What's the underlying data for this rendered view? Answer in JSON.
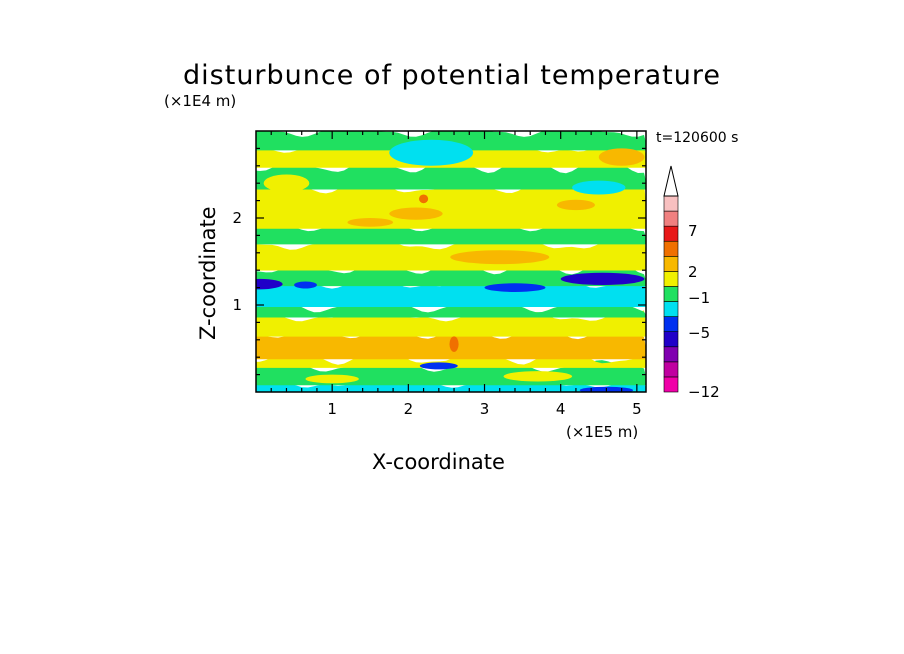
{
  "title": "disturbunce of potential temperature",
  "time_label": "t=120600 s",
  "chart_data": {
    "type": "heatmap",
    "title": "disturbunce of potential temperature",
    "xlabel": "X-coordinate",
    "ylabel": "Z-coordinate",
    "x_unit": "(×1E5 m)",
    "y_unit": "(×1E4 m)",
    "xlim": [
      0,
      5.12
    ],
    "ylim": [
      0,
      3.0
    ],
    "x_ticks": [
      1,
      2,
      3,
      4,
      5
    ],
    "y_ticks": [
      1,
      2
    ],
    "colorbar": {
      "ticks": [
        "7",
        "2",
        "−1",
        "−5",
        "−12"
      ],
      "extend": "max",
      "colors": [
        "#f000a8",
        "#c000a0",
        "#8000b0",
        "#2000c8",
        "#0030f0",
        "#00e0f0",
        "#20e060",
        "#f0f000",
        "#f8b800",
        "#f07000",
        "#e81818",
        "#f08080",
        "#f8c0c0"
      ]
    },
    "bands": [
      {
        "z0": 0.0,
        "z1": 0.1,
        "color": "#00e0f0"
      },
      {
        "z0": 0.1,
        "z1": 0.3,
        "color": "#20e060"
      },
      {
        "z0": 0.3,
        "z1": 0.4,
        "color": "#f0f000"
      },
      {
        "z0": 0.4,
        "z1": 0.66,
        "color": "#f8b800"
      },
      {
        "z0": 0.66,
        "z1": 0.88,
        "color": "#f0f000"
      },
      {
        "z0": 0.88,
        "z1": 1.0,
        "color": "#20e060"
      },
      {
        "z0": 1.0,
        "z1": 1.24,
        "color": "#00e0f0"
      },
      {
        "z0": 1.24,
        "z1": 1.42,
        "color": "#20e060"
      },
      {
        "z0": 1.42,
        "z1": 1.72,
        "color": "#f0f000"
      },
      {
        "z0": 1.72,
        "z1": 1.9,
        "color": "#20e060"
      },
      {
        "z0": 1.9,
        "z1": 2.35,
        "color": "#f0f000"
      },
      {
        "z0": 2.35,
        "z1": 2.6,
        "color": "#20e060"
      },
      {
        "z0": 2.6,
        "z1": 2.8,
        "color": "#f0f000"
      },
      {
        "z0": 2.8,
        "z1": 3.0,
        "color": "#20e060"
      }
    ],
    "patches": [
      {
        "x": 0.05,
        "z": 1.24,
        "rx": 0.3,
        "rz": 0.06,
        "color": "#2000c8"
      },
      {
        "x": 0.65,
        "z": 1.23,
        "rx": 0.15,
        "rz": 0.04,
        "color": "#0030f0"
      },
      {
        "x": 4.55,
        "z": 1.3,
        "rx": 0.55,
        "rz": 0.07,
        "color": "#2000c8"
      },
      {
        "x": 3.4,
        "z": 1.2,
        "rx": 0.4,
        "rz": 0.05,
        "color": "#0030f0"
      },
      {
        "x": 2.4,
        "z": 0.3,
        "rx": 0.25,
        "rz": 0.04,
        "color": "#0030f0"
      },
      {
        "x": 4.6,
        "z": 0.02,
        "rx": 0.35,
        "rz": 0.04,
        "color": "#0030f0"
      },
      {
        "x": 2.3,
        "z": 2.75,
        "rx": 0.55,
        "rz": 0.15,
        "color": "#00e0f0"
      },
      {
        "x": 4.5,
        "z": 2.35,
        "rx": 0.35,
        "rz": 0.08,
        "color": "#00e0f0"
      },
      {
        "x": 3.2,
        "z": 1.55,
        "rx": 0.65,
        "rz": 0.08,
        "color": "#f8b800"
      },
      {
        "x": 2.1,
        "z": 2.05,
        "rx": 0.35,
        "rz": 0.07,
        "color": "#f8b800"
      },
      {
        "x": 4.2,
        "z": 2.15,
        "rx": 0.25,
        "rz": 0.06,
        "color": "#f8b800"
      },
      {
        "x": 1.5,
        "z": 1.95,
        "rx": 0.3,
        "rz": 0.05,
        "color": "#f8b800"
      },
      {
        "x": 4.8,
        "z": 2.7,
        "rx": 0.3,
        "rz": 0.1,
        "color": "#f8b800"
      },
      {
        "x": 2.2,
        "z": 2.22,
        "rx": 0.06,
        "rz": 0.05,
        "color": "#f07000"
      },
      {
        "x": 2.6,
        "z": 0.55,
        "rx": 0.06,
        "rz": 0.09,
        "color": "#f07000"
      },
      {
        "x": 1.0,
        "z": 0.15,
        "rx": 0.35,
        "rz": 0.05,
        "color": "#f0f000"
      },
      {
        "x": 3.7,
        "z": 0.18,
        "rx": 0.45,
        "rz": 0.06,
        "color": "#f0f000"
      },
      {
        "x": 0.4,
        "z": 2.4,
        "rx": 0.3,
        "rz": 0.1,
        "color": "#f0f000"
      }
    ]
  }
}
